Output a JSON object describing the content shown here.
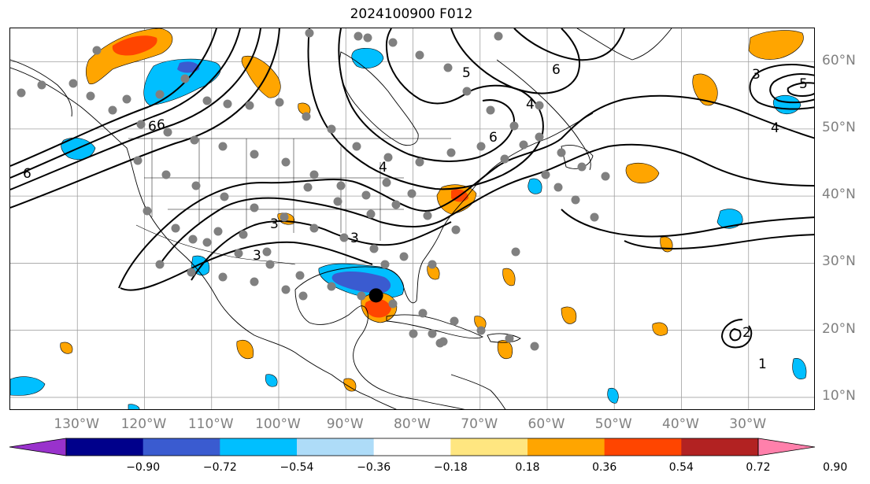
{
  "title": "2024100900 F012",
  "map": {
    "lon_range": [
      -140,
      -20
    ],
    "lat_range": [
      8,
      65
    ],
    "lat_labels": [
      "60°N",
      "50°N",
      "40°N",
      "30°N",
      "20°N",
      "10°N"
    ],
    "lat_values": [
      60,
      50,
      40,
      30,
      20,
      10
    ],
    "lon_labels": [
      "130°W",
      "120°W",
      "110°W",
      "100°W",
      "90°W",
      "80°W",
      "70°W",
      "60°W",
      "50°W",
      "40°W",
      "30°W"
    ],
    "lon_values": [
      -130,
      -120,
      -110,
      -100,
      -90,
      -80,
      -70,
      -60,
      -50,
      -40,
      -30
    ],
    "contour_labels": [
      "6",
      "6",
      "6",
      "4",
      "5",
      "6",
      "4",
      "3",
      "3",
      "4",
      "3",
      "5",
      "6",
      "6",
      "3",
      "2",
      "1"
    ],
    "marker": {
      "lon": -85.5,
      "lat": 25.2,
      "color": "#000000"
    },
    "station_color": "#808080"
  },
  "colorbar": {
    "tick_labels": [
      "−0.90",
      "−0.72",
      "−0.54",
      "−0.36",
      "−0.18",
      "0.18",
      "0.36",
      "0.54",
      "0.72",
      "0.90"
    ],
    "colors": [
      "#9932cc",
      "#00008b",
      "#3a5bd0",
      "#00bfff",
      "#aedcf8",
      "#ffffff",
      "#ffe680",
      "#ffa500",
      "#ff4500",
      "#b22222",
      "#ff80ab"
    ]
  }
}
